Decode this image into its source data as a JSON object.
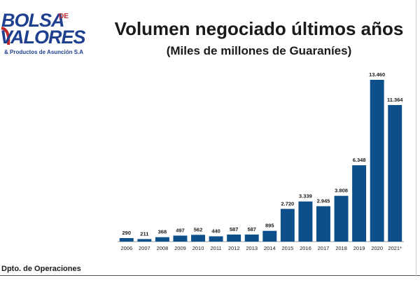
{
  "logo": {
    "line1": "BOLSA",
    "de": "DE",
    "line2": "VALORES",
    "sub": "& Productos de Asunción S.A"
  },
  "header": {
    "title": "Volumen negociado últimos años",
    "subtitle": "(Miles de millones de Guaraníes)"
  },
  "footer": {
    "text": "Dpto. de Operaciones"
  },
  "colors": {
    "bar": "#0d4f8b",
    "text": "#1a1a1a",
    "logo_blue": "#1f3f8f",
    "logo_red": "#c0282d"
  },
  "chart_data": {
    "type": "bar",
    "title": "Volumen negociado últimos años",
    "subtitle": "(Miles de millones de Guaraníes)",
    "categories": [
      "2006",
      "2007",
      "2008",
      "2009",
      "2010",
      "2011",
      "2012",
      "2013",
      "2014",
      "2015",
      "2016",
      "2017",
      "2018",
      "2019",
      "2020",
      "2021*"
    ],
    "values": [
      290,
      211,
      368,
      497,
      562,
      440,
      587,
      587,
      895,
      2720,
      3339,
      2945,
      3808,
      6348,
      13460,
      11364
    ],
    "value_labels": [
      "290",
      "211",
      "368",
      "497",
      "562",
      "440",
      "587",
      "587",
      "895",
      "2.720",
      "3.339",
      "2.945",
      "3.808",
      "6.348",
      "13.460",
      "11.364"
    ],
    "ylim": [
      0,
      13460
    ],
    "xlabel": "",
    "ylabel": "",
    "grid": false,
    "legend": "none"
  }
}
